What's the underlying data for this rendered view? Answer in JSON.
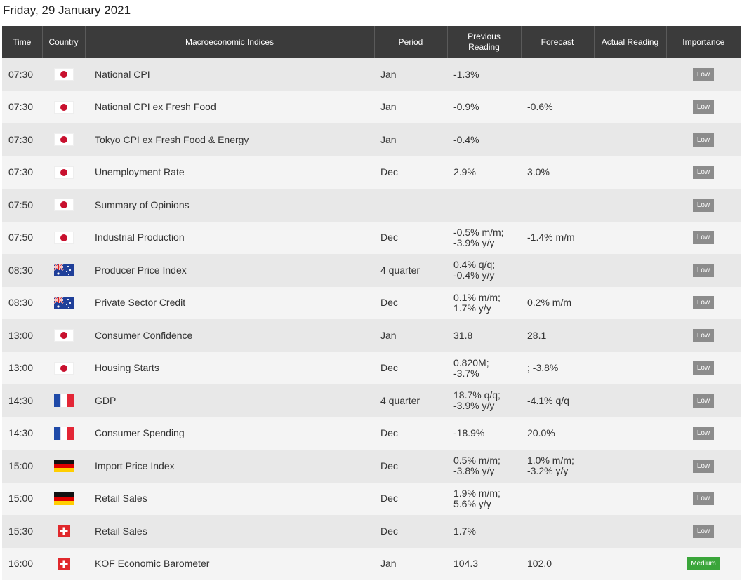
{
  "header": {
    "title": "Friday, 29 January 2021"
  },
  "table": {
    "columns": [
      "Time",
      "Country",
      "Macroeconomic Indices",
      "Period",
      "Previous\nReading",
      "Forecast",
      "Actual Reading",
      "Importance"
    ],
    "rows": [
      {
        "time": "07:30",
        "index": "National CPI",
        "period": "Jan",
        "previous": "-1.3%",
        "importance": "Low",
        "importance_color": "#8c8c8c"
      },
      {
        "time": "07:30",
        "index": "National CPI ex Fresh Food",
        "period": "Jan",
        "previous": "-0.9%",
        "forecast": "-0.6%",
        "importance": "Low",
        "importance_color": "#8c8c8c"
      },
      {
        "time": "07:30",
        "index": "Tokyo CPI ex Fresh Food & Energy",
        "period": "Jan",
        "previous": "-0.4%",
        "importance": "Low",
        "importance_color": "#8c8c8c"
      },
      {
        "time": "07:30",
        "index": "Unemployment Rate",
        "period": "Dec",
        "previous": "2.9%",
        "forecast": "3.0%",
        "importance": "Low",
        "importance_color": "#8c8c8c"
      },
      {
        "time": "07:50",
        "index": "Summary of Opinions",
        "importance": "Low",
        "importance_color": "#8c8c8c"
      },
      {
        "time": "07:50",
        "index": "Industrial Production",
        "period": "Dec",
        "previous": "-0.5% m/m;\n-3.9% y/y",
        "forecast": "-1.4% m/m",
        "importance": "Low",
        "importance_color": "#8c8c8c"
      },
      {
        "time": "08:30",
        "index": "Producer Price Index",
        "period": "4 quarter",
        "previous": "0.4% q/q;\n-0.4% y/y",
        "importance": "Low",
        "importance_color": "#8c8c8c"
      },
      {
        "time": "08:30",
        "index": "Private Sector Credit",
        "period": "Dec",
        "previous": "0.1% m/m;\n1.7% y/y",
        "forecast": "0.2% m/m",
        "importance": "Low",
        "importance_color": "#8c8c8c"
      },
      {
        "time": "13:00",
        "index": "Consumer Confidence",
        "period": "Jan",
        "previous": "31.8",
        "forecast": "28.1",
        "importance": "Low",
        "importance_color": "#8c8c8c"
      },
      {
        "time": "13:00",
        "index": "Housing Starts",
        "period": "Dec",
        "previous": "0.820M;\n-3.7%",
        "forecast": "; -3.8%",
        "importance": "Low",
        "importance_color": "#8c8c8c"
      },
      {
        "time": "14:30",
        "index": "GDP",
        "period": "4 quarter",
        "previous": "18.7% q/q;\n-3.9% y/y",
        "forecast": "-4.1% q/q",
        "importance": "Low",
        "importance_color": "#8c8c8c"
      },
      {
        "time": "14:30",
        "index": "Consumer Spending",
        "period": "Dec",
        "previous": "-18.9%",
        "forecast": "20.0%",
        "importance": "Low",
        "importance_color": "#8c8c8c"
      },
      {
        "time": "15:00",
        "index": "Import Price Index",
        "period": "Dec",
        "previous": "0.5% m/m;\n-3.8% y/y",
        "forecast": "1.0% m/m;\n-3.2% y/y",
        "importance": "Low",
        "importance_color": "#8c8c8c"
      },
      {
        "time": "15:00",
        "index": "Retail Sales",
        "period": "Dec",
        "previous": "1.9% m/m;\n5.6% y/y",
        "importance": "Low",
        "importance_color": "#8c8c8c"
      },
      {
        "time": "15:30",
        "index": "Retail Sales",
        "period": "Dec",
        "previous": "1.7%",
        "importance": "Low",
        "importance_color": "#8c8c8c"
      },
      {
        "time": "16:00",
        "index": "KOF Economic Barometer",
        "period": "Jan",
        "previous": "104.3",
        "forecast": "102.0",
        "importance": "Medium",
        "importance_color": "#3aa53a"
      }
    ]
  }
}
